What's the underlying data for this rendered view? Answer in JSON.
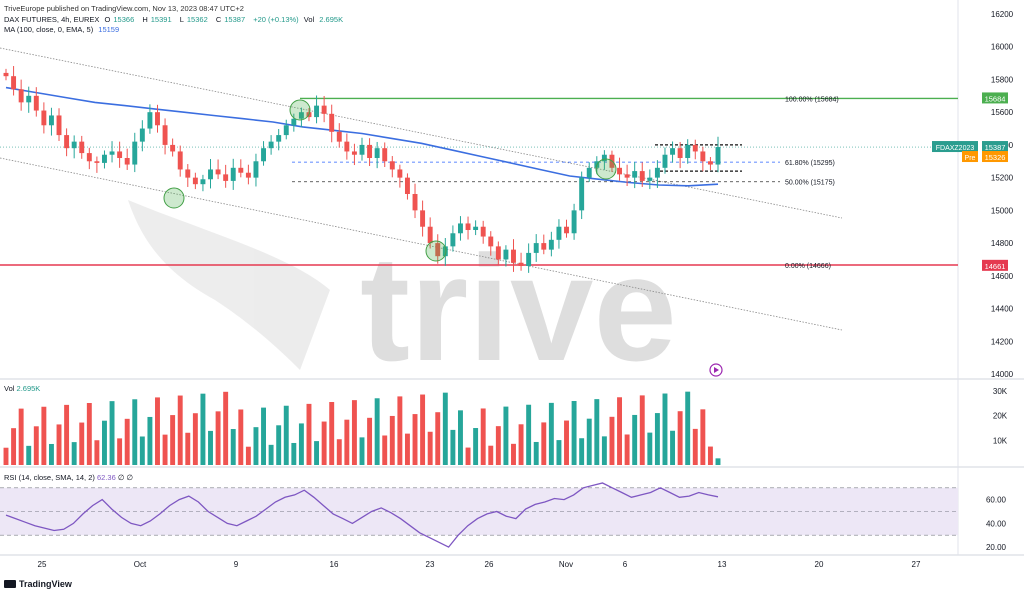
{
  "header": {
    "publish_line": "TriveEurope published on TradingView.com, Nov 13, 2023 08:47 UTC+2",
    "symbol_line": "DAX FUTURES, 4h, EUREX",
    "ohlc": [
      {
        "label": "O",
        "value": "15366"
      },
      {
        "label": "H",
        "value": "15391"
      },
      {
        "label": "L",
        "value": "15362"
      },
      {
        "label": "C",
        "value": "15387"
      }
    ],
    "change": "+20 (+0.13%)",
    "vol_label": "Vol",
    "vol_value": "2.695K",
    "ma_label": "MA (100, close, 0, EMA, 5)",
    "ma_value": "15159"
  },
  "volume_legend": {
    "label": "Vol",
    "value": "2.695K"
  },
  "rsi_legend": {
    "label": "RSI (14, close, SMA, 14, 2)",
    "value": "62.36",
    "extra": "∅ ∅"
  },
  "watermark": "trive",
  "footer_logo": "TradingView",
  "colors": {
    "up": "#26a69a",
    "down": "#ef5350",
    "ma": "#3b6ee0",
    "rsi": "#7e57c2",
    "rsi_band": "#ede7f6",
    "fib_100": "#4caf50",
    "fib_0": "#e53950",
    "current_price": "#2a9d8f",
    "pre_market": "#ff9800"
  },
  "chart_data": {
    "type": "candlestick",
    "price_axis": {
      "min": 14000,
      "max": 16200,
      "ticks": [
        16200,
        16000,
        15800,
        15600,
        15400,
        15200,
        15000,
        14800,
        14600,
        14400,
        14200,
        14000
      ]
    },
    "time_axis": {
      "ticks": [
        "25",
        "Oct",
        "9",
        "16",
        "23",
        "26",
        "Nov",
        "6",
        "13",
        "20",
        "27"
      ]
    },
    "fib_levels": [
      {
        "label": "100.00% (15684)",
        "value": 15684
      },
      {
        "label": "61.80% (15295)",
        "value": 15295
      },
      {
        "label": "50.00% (15175)",
        "value": 15175
      },
      {
        "label": "0.00% (14666)",
        "value": 14666
      }
    ],
    "price_tags": [
      {
        "label": "15684",
        "value": 15684
      },
      {
        "label": "FDAXZ2023",
        "value": 15387,
        "price": "15387"
      },
      {
        "label": "Pre",
        "value": 15326,
        "price": "15326"
      },
      {
        "label": "14661",
        "value": 14661
      }
    ],
    "closes": [
      15820,
      15740,
      15660,
      15700,
      15610,
      15520,
      15580,
      15460,
      15380,
      15420,
      15350,
      15300,
      15290,
      15340,
      15360,
      15320,
      15280,
      15420,
      15500,
      15600,
      15520,
      15400,
      15360,
      15250,
      15200,
      15160,
      15190,
      15250,
      15220,
      15180,
      15260,
      15230,
      15200,
      15300,
      15380,
      15420,
      15460,
      15520,
      15560,
      15600,
      15570,
      15640,
      15590,
      15480,
      15420,
      15360,
      15340,
      15400,
      15320,
      15380,
      15300,
      15250,
      15200,
      15100,
      15000,
      14900,
      14800,
      14720,
      14780,
      14860,
      14920,
      14880,
      14900,
      14840,
      14780,
      14700,
      14760,
      14680,
      14660,
      14740,
      14800,
      14760,
      14820,
      14900,
      14860,
      15000,
      15200,
      15260,
      15300,
      15340,
      15260,
      15220,
      15200,
      15240,
      15180,
      15200,
      15260,
      15340,
      15380,
      15320,
      15400,
      15360,
      15300,
      15280,
      15387
    ],
    "ma_series": [
      15750,
      15720,
      15690,
      15660,
      15640,
      15620,
      15600,
      15580,
      15560,
      15540,
      15510,
      15490,
      15470,
      15440,
      15410,
      15370,
      15330,
      15290,
      15250,
      15210,
      15190,
      15170,
      15155,
      15150,
      15160
    ],
    "volume_axis": {
      "max": 30000,
      "ticks": [
        "30K",
        "20K",
        "10K"
      ],
      "tick_values": [
        30000,
        20000,
        10000
      ]
    },
    "rsi_axis": {
      "min": 15,
      "max": 85,
      "ticks": [
        60.0,
        40.0,
        20.0
      ],
      "band": [
        30,
        70
      ]
    },
    "rsi": [
      47,
      44,
      41,
      38,
      36,
      34,
      35,
      40,
      48,
      55,
      60,
      52,
      45,
      40,
      38,
      42,
      48,
      55,
      60,
      63,
      58,
      50,
      45,
      40,
      38,
      42,
      46,
      52,
      58,
      62,
      64,
      68,
      62,
      55,
      48,
      44,
      40,
      45,
      50,
      53,
      49,
      44,
      38,
      32,
      28,
      24,
      20,
      30,
      38,
      44,
      48,
      50,
      46,
      44,
      52,
      56,
      58,
      61,
      60,
      64,
      70,
      72,
      74,
      70,
      66,
      62,
      64,
      66,
      70,
      66,
      62,
      63,
      66,
      64,
      62.36
    ]
  }
}
